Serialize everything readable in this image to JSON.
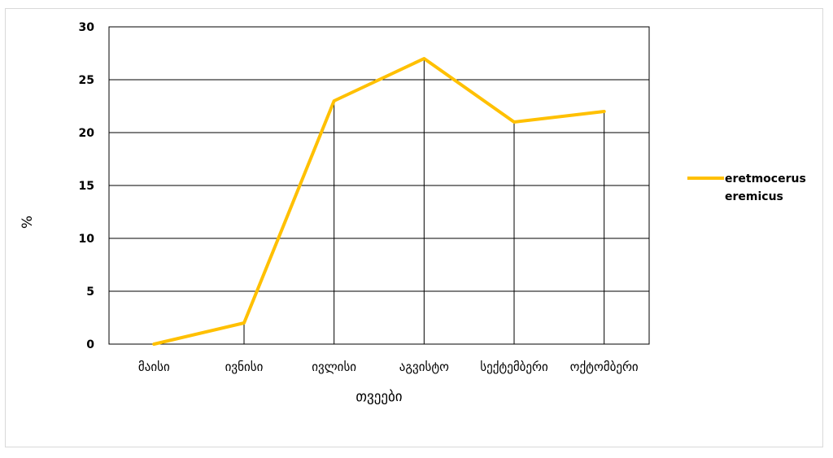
{
  "chart_data": {
    "type": "line",
    "categories": [
      "მაისი",
      "ივნისი",
      "ივლისი",
      "აგვისტო",
      "სექტემბერი",
      "ოქტომბერი"
    ],
    "series": [
      {
        "name": "eretmocerus eremicus",
        "values": [
          0,
          2,
          23,
          27,
          21,
          22
        ],
        "color": "#FFC000"
      }
    ],
    "xlabel": "თვეები",
    "ylabel": "%",
    "ylim": [
      0,
      30
    ],
    "yticks": [
      0,
      5,
      10,
      15,
      20,
      25,
      30
    ],
    "grid": true,
    "legend_position": "right",
    "legend_lines": [
      "eretmocerus",
      "eremicus"
    ]
  }
}
